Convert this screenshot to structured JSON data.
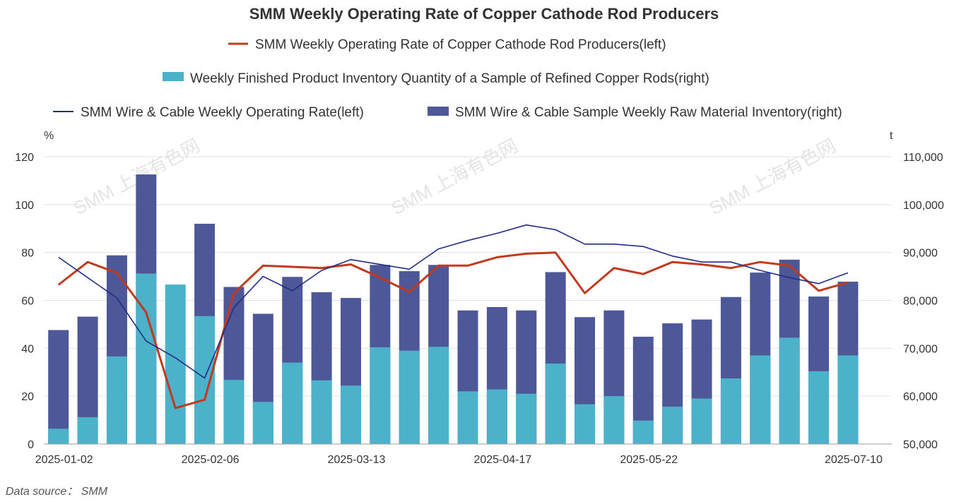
{
  "chart_data": {
    "type": "bar",
    "title": "SMM Weekly Operating Rate of Copper Cathode Rod Producers",
    "left_unit": "%",
    "right_unit": "t",
    "left_axis": {
      "min": 0,
      "max": 120,
      "ticks": [
        "0",
        "20",
        "40",
        "60",
        "80",
        "100",
        "120"
      ]
    },
    "right_axis": {
      "min": 50000,
      "max": 110000,
      "ticks": [
        "50,000",
        "60,000",
        "70,000",
        "80,000",
        "90,000",
        "100,000",
        "110,000"
      ]
    },
    "grid": true,
    "legend_position": "top",
    "stacked_bars": true,
    "categories": [
      "2025-01-02",
      "2025-01-09",
      "2025-01-16",
      "2025-01-23",
      "2025-01-30",
      "2025-02-06",
      "2025-02-13",
      "2025-02-20",
      "2025-02-27",
      "2025-03-06",
      "2025-03-13",
      "2025-03-20",
      "2025-03-27",
      "2025-04-03",
      "2025-04-10",
      "2025-04-17",
      "2025-04-24",
      "2025-05-01",
      "2025-05-08",
      "2025-05-15",
      "2025-05-22",
      "2025-05-29",
      "2025-06-05",
      "2025-06-12",
      "2025-06-19",
      "2025-06-26",
      "2025-07-03",
      "2025-07-10",
      "2025-07-17"
    ],
    "x_tick_labels": [
      "2025-01-02",
      "2025-02-06",
      "2025-03-13",
      "2025-04-17",
      "2025-05-22",
      "2025-07-10"
    ],
    "series": [
      {
        "name": "SMM Weekly Operating Rate of Copper Cathode Rod Producers(left)",
        "kind": "line",
        "axis": "left",
        "color": "#c23a1e",
        "values": [
          66.5,
          76,
          71.5,
          55,
          15,
          18.5,
          63,
          74.5,
          74,
          73.5,
          75,
          69.5,
          63.5,
          74.5,
          74.5,
          78,
          79.5,
          80,
          63,
          73.5,
          71,
          76,
          75,
          73.5,
          76,
          74.5,
          64,
          67.5,
          null
        ],
        "start_index": 0,
        "points": 28
      },
      {
        "name": "Weekly Finished Product Inventory Quantity of a Sample of Refined Copper Rods(right)",
        "kind": "bar",
        "axis": "right",
        "color": "#4bb2c9",
        "values": [
          53200,
          55600,
          68300,
          85600,
          83300,
          76700,
          63400,
          58800,
          67000,
          63300,
          62200,
          70200,
          69500,
          70300,
          61000,
          61400,
          60500,
          66800,
          58300,
          60000,
          54900,
          57800,
          59500,
          63700,
          68500,
          72200,
          65200,
          68500,
          null
        ]
      },
      {
        "name": "SMM Wire & Cable Weekly Operating Rate(left)",
        "kind": "line",
        "axis": "left",
        "color": "#1f2d86",
        "values": [
          78,
          69.5,
          61,
          43,
          36,
          27.5,
          57,
          70,
          64,
          72.5,
          77,
          75,
          73,
          81.5,
          85,
          88,
          91.5,
          89.5,
          83.5,
          83.5,
          82.5,
          78.5,
          76,
          76,
          72.5,
          69.5,
          67,
          71.5,
          null
        ],
        "start_index": 0,
        "points": 28
      },
      {
        "name": "SMM Wire & Cable Sample Weekly Raw Material Inventory(right)",
        "kind": "bar",
        "axis": "right",
        "color": "#4e5898",
        "values": [
          73800,
          76600,
          89400,
          106300,
          null,
          96000,
          82800,
          77200,
          84900,
          81700,
          80500,
          87400,
          86100,
          87400,
          77900,
          78600,
          77900,
          85900,
          76500,
          77900,
          72400,
          75200,
          76000,
          80700,
          85800,
          88500,
          80800,
          83900,
          null
        ]
      }
    ]
  },
  "legend": {
    "line1": "SMM Weekly Operating Rate of Copper Cathode Rod Producers(left)",
    "line2": "Weekly Finished Product Inventory Quantity of a Sample of Refined Copper Rods(right)",
    "line3a": "SMM Wire & Cable Weekly Operating Rate(left)",
    "line3b": "SMM Wire & Cable Sample Weekly Raw Material Inventory(right)"
  },
  "footer": {
    "source": "Data source： SMM"
  },
  "watermark": {
    "text": "SMM 上海有色网"
  }
}
